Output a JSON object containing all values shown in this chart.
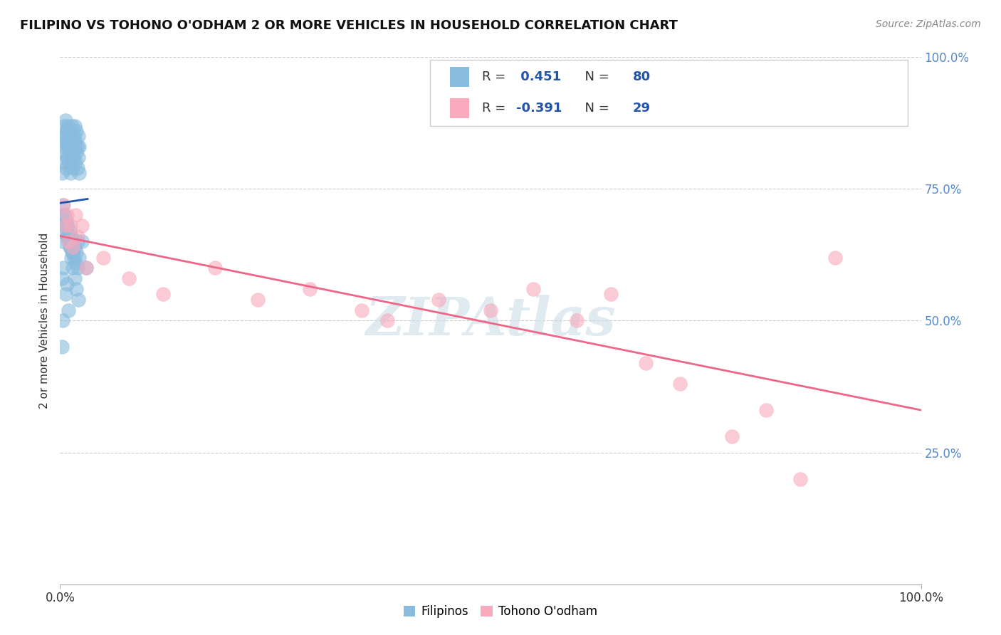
{
  "title": "FILIPINO VS TOHONO O'ODHAM 2 OR MORE VEHICLES IN HOUSEHOLD CORRELATION CHART",
  "source": "Source: ZipAtlas.com",
  "ylabel": "2 or more Vehicles in Household",
  "xlim": [
    0.0,
    1.0
  ],
  "ylim": [
    0.0,
    1.0
  ],
  "xticks": [
    0.0,
    0.25,
    0.5,
    0.75,
    1.0
  ],
  "xtick_labels": [
    "0.0%",
    "",
    "",
    "",
    "100.0%"
  ],
  "yticks": [
    0.25,
    0.5,
    0.75,
    1.0
  ],
  "ytick_labels": [
    "25.0%",
    "50.0%",
    "75.0%",
    "100.0%"
  ],
  "blue_R": 0.451,
  "blue_N": 80,
  "pink_R": -0.391,
  "pink_N": 29,
  "legend_label1": "Filipinos",
  "legend_label2": "Tohono O'odham",
  "watermark": "ZIPAtlas",
  "blue_color": "#88bbdd",
  "pink_color": "#f9aabc",
  "blue_line_color": "#2255aa",
  "pink_line_color": "#ee6688",
  "background_color": "#ffffff",
  "grid_color": "#cccccc",
  "blue_x": [
    0.002,
    0.003,
    0.004,
    0.004,
    0.005,
    0.005,
    0.006,
    0.006,
    0.007,
    0.007,
    0.008,
    0.008,
    0.009,
    0.009,
    0.01,
    0.01,
    0.011,
    0.011,
    0.012,
    0.012,
    0.013,
    0.013,
    0.014,
    0.014,
    0.015,
    0.015,
    0.016,
    0.016,
    0.017,
    0.017,
    0.018,
    0.018,
    0.019,
    0.019,
    0.02,
    0.02,
    0.021,
    0.021,
    0.022,
    0.022,
    0.003,
    0.004,
    0.005,
    0.006,
    0.007,
    0.008,
    0.009,
    0.01,
    0.011,
    0.012,
    0.013,
    0.014,
    0.015,
    0.016,
    0.017,
    0.018,
    0.019,
    0.02,
    0.022,
    0.025,
    0.003,
    0.005,
    0.007,
    0.009,
    0.011,
    0.013,
    0.015,
    0.017,
    0.019,
    0.021,
    0.002,
    0.004,
    0.006,
    0.008,
    0.01,
    0.015,
    0.02,
    0.03,
    0.002,
    0.003
  ],
  "blue_y": [
    0.78,
    0.82,
    0.8,
    0.85,
    0.83,
    0.87,
    0.84,
    0.88,
    0.79,
    0.86,
    0.81,
    0.85,
    0.83,
    0.87,
    0.8,
    0.84,
    0.82,
    0.86,
    0.78,
    0.83,
    0.8,
    0.84,
    0.82,
    0.87,
    0.79,
    0.84,
    0.81,
    0.85,
    0.83,
    0.87,
    0.8,
    0.84,
    0.82,
    0.86,
    0.79,
    0.83,
    0.81,
    0.85,
    0.78,
    0.83,
    0.65,
    0.68,
    0.7,
    0.67,
    0.69,
    0.66,
    0.68,
    0.65,
    0.67,
    0.64,
    0.66,
    0.63,
    0.65,
    0.62,
    0.64,
    0.61,
    0.63,
    0.6,
    0.62,
    0.65,
    0.72,
    0.7,
    0.68,
    0.66,
    0.64,
    0.62,
    0.6,
    0.58,
    0.56,
    0.54,
    0.58,
    0.6,
    0.55,
    0.57,
    0.52,
    0.63,
    0.65,
    0.6,
    0.45,
    0.5
  ],
  "pink_x": [
    0.004,
    0.006,
    0.008,
    0.01,
    0.012,
    0.015,
    0.018,
    0.02,
    0.025,
    0.03,
    0.05,
    0.08,
    0.12,
    0.18,
    0.23,
    0.29,
    0.35,
    0.38,
    0.44,
    0.5,
    0.55,
    0.6,
    0.64,
    0.68,
    0.72,
    0.78,
    0.82,
    0.86,
    0.9
  ],
  "pink_y": [
    0.72,
    0.68,
    0.7,
    0.65,
    0.68,
    0.64,
    0.7,
    0.66,
    0.68,
    0.6,
    0.62,
    0.58,
    0.55,
    0.6,
    0.54,
    0.56,
    0.52,
    0.5,
    0.54,
    0.52,
    0.56,
    0.5,
    0.55,
    0.42,
    0.38,
    0.28,
    0.33,
    0.2,
    0.62
  ]
}
